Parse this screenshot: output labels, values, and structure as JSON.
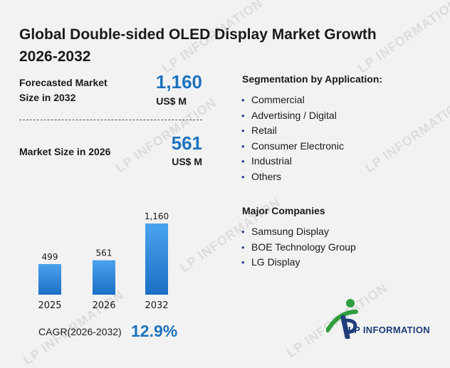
{
  "title": "Global Double-sided OLED Display Market Growth 2026-2032",
  "forecast": {
    "label": "Forecasted Market Size in 2032",
    "value": "1,160",
    "unit": "US$ M"
  },
  "current": {
    "label": "Market Size in 2026",
    "value": "561",
    "unit": "US$ M"
  },
  "segmentation": {
    "title": "Segmentation by Application:",
    "items": [
      "Commercial",
      "Advertising / Digital",
      "Retail",
      "Consumer Electronic",
      "Industrial",
      "Others"
    ]
  },
  "companies": {
    "title": "Major Companies",
    "items": [
      "Samsung Display",
      "BOE Technology Group",
      "LG Display"
    ]
  },
  "chart_data": {
    "type": "bar",
    "categories": [
      "2025",
      "2026",
      "2032"
    ],
    "values": [
      499,
      561,
      1160
    ],
    "value_labels": [
      "499",
      "561",
      "1,160"
    ],
    "ylim": [
      0,
      1160
    ],
    "grid": false,
    "colors": {
      "bar_top": "#4aa3ee",
      "bar_bottom": "#1a6fc4"
    }
  },
  "cagr": {
    "label": "CAGR(2026-2032)",
    "value": "12.9%"
  },
  "logo": {
    "text": "LP INFORMATION"
  },
  "watermark": "LP INFORMATION",
  "colors": {
    "accent": "#1e73be",
    "background": "#f2f2f2",
    "bullet": "#2a3f8f",
    "logo_green": "#2e9e3e",
    "logo_navy": "#1f3d7a"
  }
}
